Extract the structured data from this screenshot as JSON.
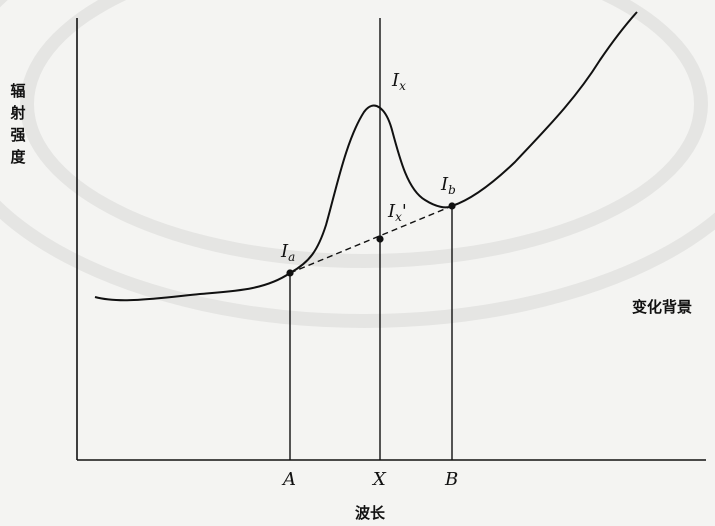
{
  "axes": {
    "y_label": "辐射强度",
    "x_label": "波长"
  },
  "curve_labels": {
    "background": "变化背景",
    "peak_intensity": "Ix",
    "interpolated_intensity": "Ix'",
    "left_point": "Ia",
    "right_point": "Ib"
  },
  "wavelength_marks": {
    "a": "A",
    "x": "X",
    "b": "B"
  },
  "colors": {
    "ink": "#111111",
    "paper": "#f4f4f2"
  }
}
